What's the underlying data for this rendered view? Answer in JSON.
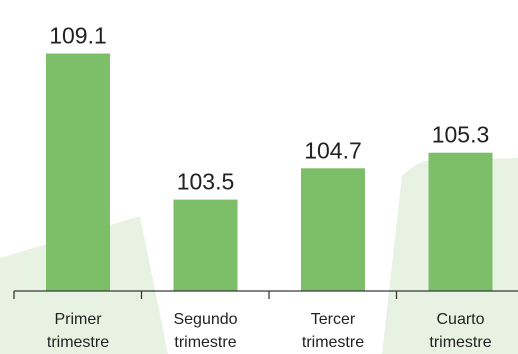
{
  "chart_data": {
    "type": "bar",
    "title": "",
    "xlabel": "",
    "ylabel": "",
    "ylim": [
      100,
      110
    ],
    "grid": false,
    "legend": "none",
    "categories": [
      [
        "Primer",
        "trimestre"
      ],
      [
        "Segundo",
        "trimestre"
      ],
      [
        "Tercer",
        "trimestre"
      ],
      [
        "Cuarto",
        "trimestre"
      ]
    ],
    "values": [
      109.1,
      103.5,
      104.7,
      105.3
    ],
    "value_labels": [
      "109.1",
      "103.5",
      "104.7",
      "105.3"
    ],
    "colors": {
      "bar": "#7dbf68",
      "axis": "#3a3a3a",
      "text": "#222222",
      "background_shape": "#e7f2e3"
    }
  }
}
